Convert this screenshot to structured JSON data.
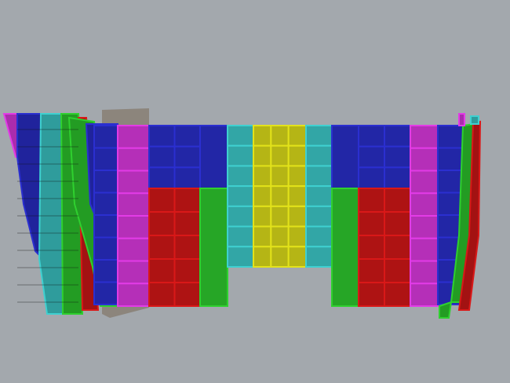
{
  "viewport": {
    "background": "#a3a8ad",
    "colors": {
      "blue": "#2b2fd0",
      "magenta": "#e23be6",
      "red": "#d91818",
      "green": "#2fd02f",
      "cyan": "#3fd0d0",
      "yellow": "#e2e21a",
      "gray": "#8c857c"
    },
    "front_columns": [
      {
        "color": "blue",
        "rows": [
          8
        ]
      },
      {
        "color": "magenta",
        "rows": [
          8
        ]
      },
      {
        "color": "blue",
        "split": "red",
        "rows": [
          3,
          5
        ]
      },
      {
        "color": "blue",
        "split": "green",
        "rows": [
          1,
          1
        ]
      },
      {
        "color": "cyan",
        "rows": [
          7
        ]
      },
      {
        "color": "yellow",
        "rows": [
          7
        ]
      },
      {
        "color": "cyan",
        "rows": [
          7
        ]
      },
      {
        "color": "blue",
        "split": "green",
        "rows": [
          1,
          1
        ]
      },
      {
        "color": "blue",
        "split": "red",
        "rows": [
          3,
          5
        ]
      },
      {
        "color": "magenta",
        "rows": [
          8
        ]
      },
      {
        "color": "blue",
        "rows": [
          8
        ]
      }
    ]
  }
}
